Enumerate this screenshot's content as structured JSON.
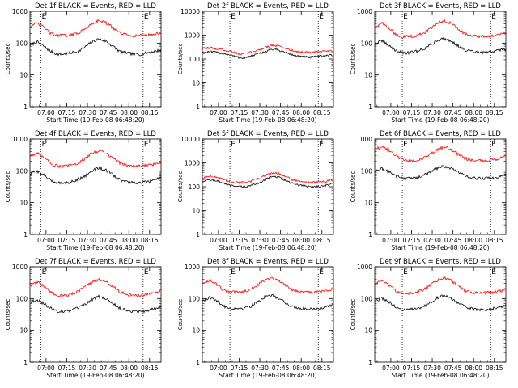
{
  "figure": {
    "x_tick_labels": [
      "07:00",
      "07:15",
      "07:30",
      "07:45",
      "08:00",
      "08:15"
    ],
    "y_tick_labels": [
      "1",
      "10",
      "100",
      "1000",
      "10000"
    ],
    "xlabel": "Start Time (19-Feb-08 06:48:20)",
    "ylabel": "Counts/sec",
    "marker_label": "E",
    "colors": {
      "events": "#000000",
      "lld": "#ff0000"
    }
  },
  "chart_data": [
    {
      "type": "line",
      "title": "Det 1f BLACK = Events, RED = LLD",
      "xlabel": "Start Time (19-Feb-08 06:48:20)",
      "ylabel": "Counts/sec",
      "x_unit": "minutes after 06:48:20",
      "xlim": [
        0,
        95
      ],
      "ylim": [
        1,
        1000
      ],
      "y_scale": "log",
      "vlines_min": [
        8,
        82
      ],
      "series": [
        {
          "name": "Events",
          "color": "#000000",
          "x": [
            0,
            5,
            10,
            15,
            20,
            25,
            30,
            35,
            40,
            45,
            50,
            55,
            60,
            65,
            70,
            75,
            80,
            85,
            90,
            95
          ],
          "values": [
            85,
            110,
            80,
            55,
            45,
            45,
            50,
            55,
            75,
            110,
            135,
            115,
            80,
            55,
            50,
            45,
            45,
            50,
            55,
            60
          ]
        },
        {
          "name": "LLD",
          "color": "#ff0000",
          "x": [
            0,
            5,
            10,
            15,
            20,
            25,
            30,
            35,
            40,
            45,
            50,
            55,
            60,
            65,
            70,
            75,
            80,
            85,
            90,
            95
          ],
          "values": [
            330,
            420,
            320,
            200,
            175,
            175,
            180,
            210,
            280,
            420,
            520,
            440,
            300,
            210,
            180,
            170,
            175,
            180,
            190,
            220
          ]
        }
      ]
    },
    {
      "type": "line",
      "title": "Det 2f BLACK = Events, RED = LLD",
      "xlabel": "Start Time (19-Feb-08 06:48:20)",
      "ylabel": "Counts/sec",
      "x_unit": "minutes after 06:48:20",
      "xlim": [
        0,
        95
      ],
      "ylim": [
        1,
        10000
      ],
      "y_scale": "log",
      "vlines_min": [
        20,
        84
      ],
      "series": [
        {
          "name": "Events",
          "color": "#000000",
          "x": [
            0,
            5,
            10,
            15,
            20,
            25,
            30,
            35,
            40,
            45,
            50,
            55,
            60,
            65,
            70,
            75,
            80,
            85,
            90,
            95
          ],
          "values": [
            180,
            200,
            190,
            170,
            150,
            120,
            110,
            130,
            160,
            200,
            260,
            240,
            190,
            150,
            130,
            120,
            120,
            130,
            140,
            150
          ]
        },
        {
          "name": "LLD",
          "color": "#ff0000",
          "x": [
            0,
            5,
            10,
            15,
            20,
            25,
            30,
            35,
            40,
            45,
            50,
            55,
            60,
            65,
            70,
            75,
            80,
            85,
            90,
            95
          ],
          "values": [
            260,
            300,
            270,
            240,
            220,
            170,
            160,
            190,
            230,
            300,
            380,
            350,
            280,
            230,
            200,
            190,
            190,
            200,
            210,
            220
          ]
        }
      ]
    },
    {
      "type": "line",
      "title": "Det 3f BLACK = Events, RED = LLD",
      "xlabel": "Start Time (19-Feb-08 06:48:20)",
      "ylabel": "Counts/sec",
      "x_unit": "minutes after 06:48:20",
      "xlim": [
        0,
        95
      ],
      "ylim": [
        1,
        1000
      ],
      "y_scale": "log",
      "vlines_min": [
        20,
        84
      ],
      "series": [
        {
          "name": "Events",
          "color": "#000000",
          "x": [
            0,
            5,
            10,
            15,
            20,
            25,
            30,
            35,
            40,
            45,
            50,
            55,
            60,
            65,
            70,
            75,
            80,
            85,
            90,
            95
          ],
          "values": [
            90,
            120,
            85,
            60,
            50,
            50,
            55,
            65,
            85,
            120,
            140,
            120,
            85,
            60,
            55,
            50,
            50,
            55,
            60,
            65
          ]
        },
        {
          "name": "LLD",
          "color": "#ff0000",
          "x": [
            0,
            5,
            10,
            15,
            20,
            25,
            30,
            35,
            40,
            45,
            50,
            55,
            60,
            65,
            70,
            75,
            80,
            85,
            90,
            95
          ],
          "values": [
            300,
            430,
            300,
            190,
            160,
            160,
            170,
            200,
            280,
            420,
            520,
            430,
            300,
            200,
            170,
            160,
            160,
            170,
            180,
            210
          ]
        }
      ]
    },
    {
      "type": "line",
      "title": "Det 4f BLACK = Events, RED = LLD",
      "xlabel": "Start Time (19-Feb-08 06:48:20)",
      "ylabel": "Counts/sec",
      "x_unit": "minutes after 06:48:20",
      "xlim": [
        0,
        95
      ],
      "ylim": [
        1,
        1000
      ],
      "y_scale": "log",
      "vlines_min": [
        8,
        82
      ],
      "series": [
        {
          "name": "Events",
          "color": "#000000",
          "x": [
            0,
            5,
            10,
            15,
            20,
            25,
            30,
            35,
            40,
            45,
            50,
            55,
            60,
            65,
            70,
            75,
            80,
            85,
            90,
            95
          ],
          "values": [
            80,
            100,
            75,
            50,
            42,
            42,
            45,
            55,
            70,
            100,
            125,
            105,
            75,
            52,
            45,
            42,
            42,
            45,
            50,
            60
          ]
        },
        {
          "name": "LLD",
          "color": "#ff0000",
          "x": [
            0,
            5,
            10,
            15,
            20,
            25,
            30,
            35,
            40,
            45,
            50,
            55,
            60,
            65,
            70,
            75,
            80,
            85,
            90,
            95
          ],
          "values": [
            290,
            360,
            280,
            170,
            140,
            140,
            150,
            180,
            240,
            360,
            430,
            370,
            260,
            180,
            150,
            140,
            140,
            150,
            160,
            190
          ]
        }
      ]
    },
    {
      "type": "line",
      "title": "Det 5f BLACK = Events, RED = LLD",
      "xlabel": "Start Time (19-Feb-08 06:48:20)",
      "ylabel": "Counts/sec",
      "x_unit": "minutes after 06:48:20",
      "xlim": [
        0,
        95
      ],
      "ylim": [
        1,
        10000
      ],
      "y_scale": "log",
      "vlines_min": [
        20,
        84
      ],
      "series": [
        {
          "name": "Events",
          "color": "#000000",
          "x": [
            0,
            5,
            10,
            15,
            20,
            25,
            30,
            35,
            40,
            45,
            50,
            55,
            60,
            65,
            70,
            75,
            80,
            85,
            90,
            95
          ],
          "values": [
            170,
            200,
            180,
            140,
            110,
            100,
            100,
            110,
            140,
            190,
            260,
            250,
            190,
            140,
            115,
            105,
            100,
            105,
            115,
            130
          ]
        },
        {
          "name": "LLD",
          "color": "#ff0000",
          "x": [
            0,
            5,
            10,
            15,
            20,
            25,
            30,
            35,
            40,
            45,
            50,
            55,
            60,
            65,
            70,
            75,
            80,
            85,
            90,
            95
          ],
          "values": [
            230,
            290,
            260,
            200,
            160,
            150,
            150,
            165,
            210,
            280,
            380,
            370,
            280,
            200,
            165,
            155,
            150,
            155,
            170,
            200
          ]
        }
      ]
    },
    {
      "type": "line",
      "title": "Det 6f BLACK = Events, RED = LLD",
      "xlabel": "Start Time (19-Feb-08 06:48:20)",
      "ylabel": "Counts/sec",
      "x_unit": "minutes after 06:48:20",
      "xlim": [
        0,
        95
      ],
      "ylim": [
        1,
        1000
      ],
      "y_scale": "log",
      "vlines_min": [
        20,
        84
      ],
      "series": [
        {
          "name": "Events",
          "color": "#000000",
          "x": [
            0,
            5,
            10,
            15,
            20,
            25,
            30,
            35,
            40,
            45,
            50,
            55,
            60,
            65,
            70,
            75,
            80,
            85,
            90,
            95
          ],
          "values": [
            90,
            120,
            95,
            70,
            60,
            58,
            60,
            70,
            90,
            120,
            140,
            125,
            95,
            70,
            60,
            58,
            58,
            60,
            65,
            75
          ]
        },
        {
          "name": "LLD",
          "color": "#ff0000",
          "x": [
            0,
            5,
            10,
            15,
            20,
            25,
            30,
            35,
            40,
            45,
            50,
            55,
            60,
            65,
            70,
            75,
            80,
            85,
            90,
            95
          ],
          "values": [
            480,
            560,
            450,
            300,
            230,
            210,
            210,
            240,
            320,
            450,
            560,
            480,
            340,
            250,
            220,
            210,
            210,
            220,
            240,
            290
          ]
        }
      ]
    },
    {
      "type": "line",
      "title": "Det 7f BLACK = Events, RED = LLD",
      "xlabel": "Start Time (19-Feb-08 06:48:20)",
      "ylabel": "Counts/sec",
      "x_unit": "minutes after 06:48:20",
      "xlim": [
        0,
        95
      ],
      "ylim": [
        1,
        1000
      ],
      "y_scale": "log",
      "vlines_min": [
        8,
        82
      ],
      "series": [
        {
          "name": "Events",
          "color": "#000000",
          "x": [
            0,
            5,
            10,
            15,
            20,
            25,
            30,
            35,
            40,
            45,
            50,
            55,
            60,
            65,
            70,
            75,
            80,
            85,
            90,
            95
          ],
          "values": [
            75,
            95,
            70,
            50,
            40,
            40,
            42,
            50,
            65,
            95,
            115,
            100,
            70,
            50,
            42,
            40,
            40,
            42,
            48,
            58
          ]
        },
        {
          "name": "LLD",
          "color": "#ff0000",
          "x": [
            0,
            5,
            10,
            15,
            20,
            25,
            30,
            35,
            40,
            45,
            50,
            55,
            60,
            65,
            70,
            75,
            80,
            85,
            90,
            95
          ],
          "values": [
            250,
            330,
            250,
            160,
            125,
            125,
            135,
            165,
            230,
            340,
            400,
            340,
            240,
            165,
            135,
            125,
            125,
            135,
            150,
            180
          ]
        }
      ]
    },
    {
      "type": "line",
      "title": "Det 8f BLACK = Events, RED = LLD",
      "xlabel": "Start Time (19-Feb-08 06:48:20)",
      "ylabel": "Counts/sec",
      "x_unit": "minutes after 06:48:20",
      "xlim": [
        0,
        95
      ],
      "ylim": [
        1,
        1000
      ],
      "y_scale": "log",
      "vlines_min": [
        20,
        84
      ],
      "series": [
        {
          "name": "Events",
          "color": "#000000",
          "x": [
            0,
            5,
            10,
            15,
            20,
            25,
            30,
            35,
            40,
            45,
            50,
            55,
            60,
            65,
            70,
            75,
            80,
            85,
            90,
            95
          ],
          "values": [
            85,
            110,
            85,
            60,
            50,
            48,
            50,
            58,
            80,
            110,
            125,
            105,
            75,
            55,
            50,
            48,
            48,
            50,
            55,
            65
          ]
        },
        {
          "name": "LLD",
          "color": "#ff0000",
          "x": [
            0,
            5,
            10,
            15,
            20,
            25,
            30,
            35,
            40,
            45,
            50,
            55,
            60,
            65,
            70,
            75,
            80,
            85,
            90,
            95
          ],
          "values": [
            290,
            380,
            290,
            190,
            160,
            160,
            170,
            200,
            270,
            380,
            450,
            380,
            270,
            190,
            165,
            160,
            160,
            165,
            180,
            210
          ]
        }
      ]
    },
    {
      "type": "line",
      "title": "Det 9f BLACK = Events, RED = LLD",
      "xlabel": "Start Time (19-Feb-08 06:48:20)",
      "ylabel": "Counts/sec",
      "x_unit": "minutes after 06:48:20",
      "xlim": [
        0,
        95
      ],
      "ylim": [
        1,
        1000
      ],
      "y_scale": "log",
      "vlines_min": [
        20,
        84
      ],
      "series": [
        {
          "name": "Events",
          "color": "#000000",
          "x": [
            0,
            5,
            10,
            15,
            20,
            25,
            30,
            35,
            40,
            45,
            50,
            55,
            60,
            65,
            70,
            75,
            80,
            85,
            90,
            95
          ],
          "values": [
            80,
            105,
            80,
            55,
            45,
            45,
            48,
            55,
            75,
            105,
            125,
            105,
            75,
            55,
            48,
            45,
            45,
            48,
            52,
            62
          ]
        },
        {
          "name": "LLD",
          "color": "#ff0000",
          "x": [
            0,
            5,
            10,
            15,
            20,
            25,
            30,
            35,
            40,
            45,
            50,
            55,
            60,
            65,
            70,
            75,
            80,
            85,
            90,
            95
          ],
          "values": [
            280,
            370,
            280,
            180,
            150,
            150,
            160,
            190,
            260,
            370,
            440,
            370,
            260,
            180,
            155,
            150,
            150,
            155,
            170,
            200
          ]
        }
      ]
    }
  ]
}
